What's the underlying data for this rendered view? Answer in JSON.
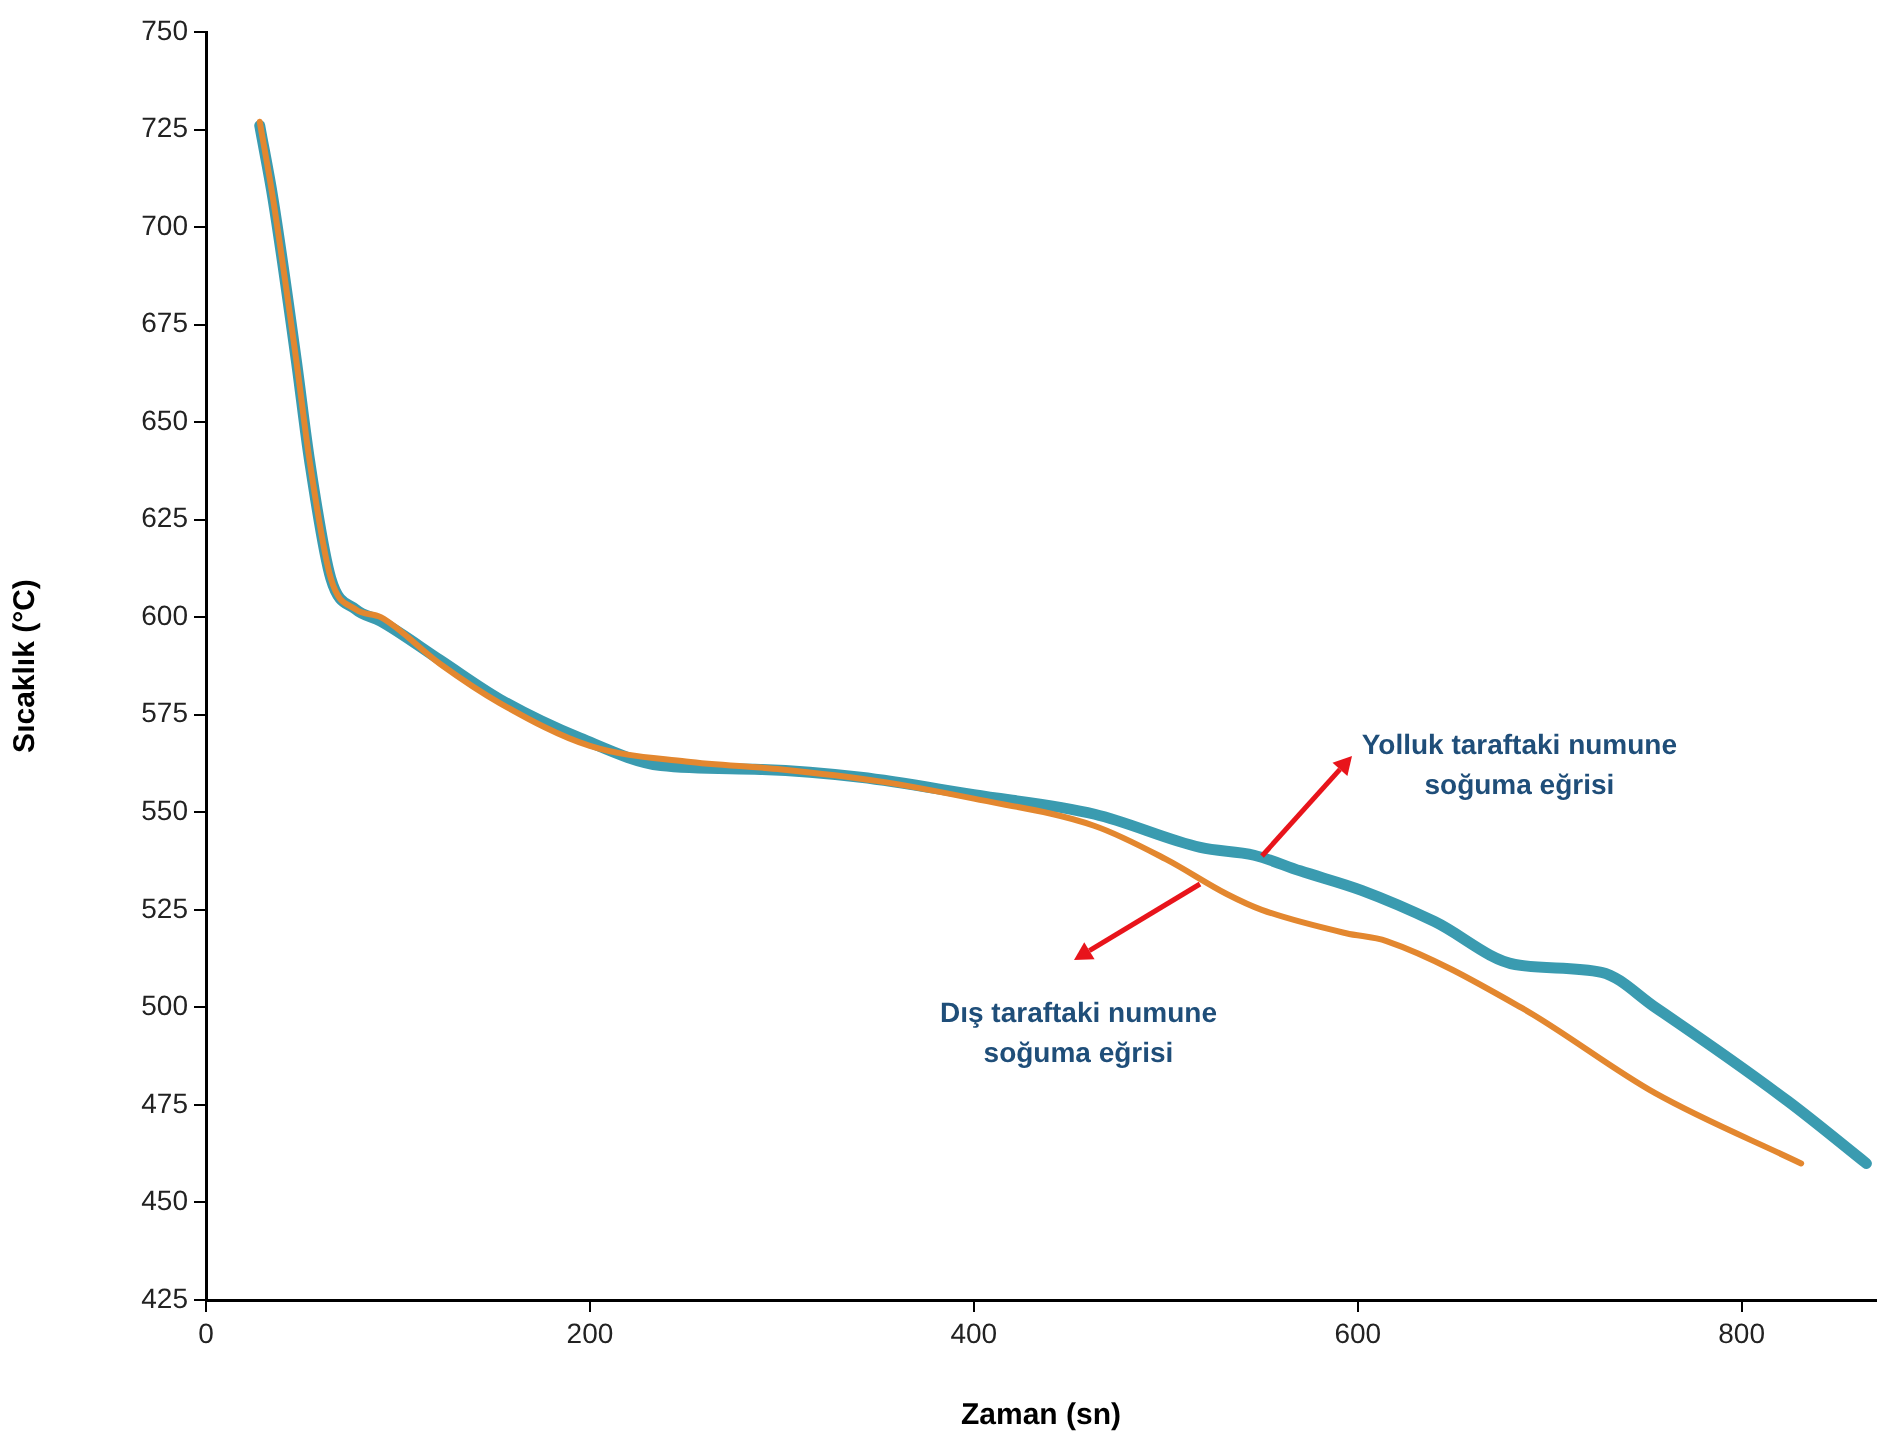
{
  "chart_data": {
    "type": "line",
    "xlabel": "Zaman (sn)",
    "ylabel": "Sıcaklık (°C)",
    "xlim": [
      0,
      870
    ],
    "xticks": [
      0,
      200,
      400,
      600,
      800
    ],
    "ylim": [
      425,
      750
    ],
    "yticks": [
      425,
      450,
      475,
      500,
      525,
      550,
      575,
      600,
      625,
      650,
      675,
      700,
      725,
      750
    ],
    "grid": false,
    "legend": false,
    "marker": "none",
    "line_style": "solid",
    "annotations": [
      {
        "text": "Yolluk taraftaki numune soğuma eğrisi",
        "x": 550,
        "y": 539
      },
      "Dış taraftaki numune soğuma eğrisi"
    ],
    "series": [
      {
        "color": "#3a9bb0",
        "x": [
          28,
          35,
          47,
          54,
          65,
          78,
          91,
          122,
          153,
          195,
          237,
          289,
          341,
          400,
          463,
          518,
          546,
          570,
          602,
          640,
          682,
          727,
          755,
          824,
          865
        ],
        "values": [
          726,
          707,
          666,
          640,
          610,
          602,
          599,
          589,
          579,
          569,
          562,
          561,
          559,
          554.5,
          549.5,
          541,
          539,
          535,
          530,
          522,
          511,
          509,
          500,
          476,
          460
        ]
      },
      {
        "color": "#e3872f",
        "x": [
          28,
          35,
          47,
          54,
          65,
          78,
          91,
          122,
          153,
          200,
          250,
          300,
          350,
          400,
          463,
          500,
          532,
          550,
          594,
          615,
          685,
          755,
          831
        ],
        "values": [
          727,
          707,
          666,
          640,
          610,
          602,
          600,
          588,
          578,
          567,
          563,
          561,
          558,
          553.5,
          546.5,
          538,
          529,
          525,
          519,
          517,
          500,
          478,
          460
        ]
      }
    ]
  }
}
